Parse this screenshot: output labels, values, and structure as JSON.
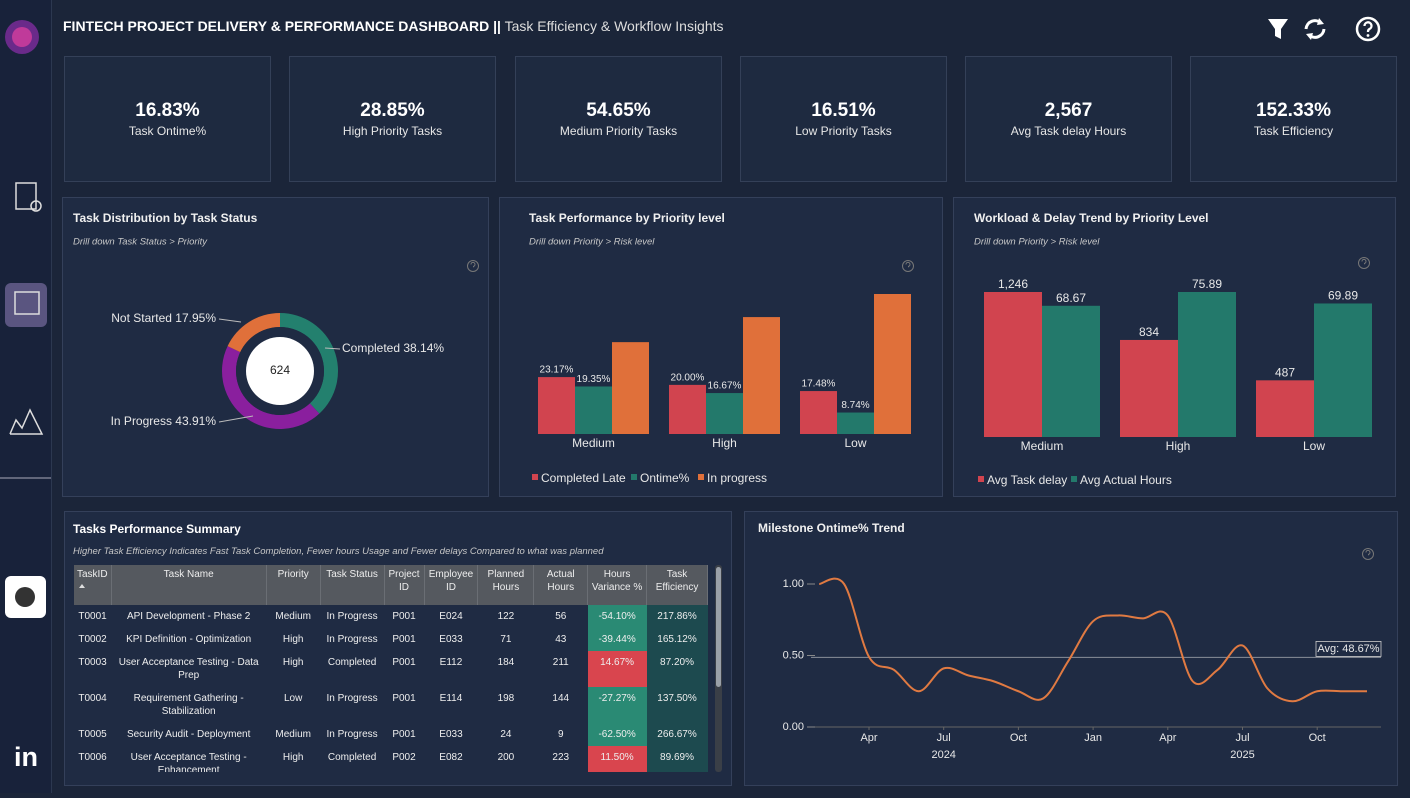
{
  "header": {
    "title": "FINTECH PROJECT DELIVERY & PERFORMANCE DASHBOARD ||",
    "subtitle": "Task Efficiency & Workflow Insights"
  },
  "brand": "in",
  "kpis": [
    {
      "value": "16.83%",
      "label": "Task Ontime%"
    },
    {
      "value": "28.85%",
      "label": "High Priority Tasks"
    },
    {
      "value": "54.65%",
      "label": "Medium Priority Tasks"
    },
    {
      "value": "16.51%",
      "label": "Low Priority Tasks"
    },
    {
      "value": "2,567",
      "label": "Avg Task delay Hours"
    },
    {
      "value": "152.33%",
      "label": "Task Efficiency"
    }
  ],
  "chart_data": [
    {
      "type": "pie",
      "title": "Task Distribution by Task Status",
      "subtitle": "Drill down Task Status > Priority",
      "categories": [
        "Completed",
        "In Progress",
        "Not Started"
      ],
      "values": [
        38.14,
        43.91,
        17.95
      ],
      "value_labels": [
        "38.14%",
        "43.91%",
        "17.95%"
      ],
      "colors": [
        "#23806e",
        "#8a1f9e",
        "#e0703a"
      ],
      "total": 624
    },
    {
      "type": "bar",
      "title": "Task Performance by Priority level",
      "subtitle": "Drill down Priority > Risk level",
      "categories": [
        "Medium",
        "High",
        "Low"
      ],
      "series": [
        {
          "name": "Completed Late",
          "color": "#d1444f",
          "values": [
            23.17,
            20.0,
            17.48
          ],
          "value_labels": [
            "23.17%",
            "20.00%",
            "17.48%"
          ]
        },
        {
          "name": "Ontime%",
          "color": "#23796b",
          "values": [
            19.35,
            16.67,
            8.74
          ],
          "value_labels": [
            "19.35%",
            "16.67%",
            "8.74%"
          ]
        },
        {
          "name": "In progress",
          "color": "#e0703a",
          "values": [
            37.4,
            47.6,
            57.0
          ]
        }
      ]
    },
    {
      "type": "bar",
      "title": "Workload & Delay Trend by Priority Level",
      "subtitle": "Drill down Priority > Risk level",
      "categories": [
        "Medium",
        "High",
        "Low"
      ],
      "series": [
        {
          "name": "Avg Task delay",
          "color": "#d1444f",
          "values": [
            1246,
            834,
            487
          ],
          "value_labels": [
            "1,246",
            "834",
            "487"
          ]
        },
        {
          "name": "Avg Actual Hours",
          "color": "#23796b",
          "axis": "y2",
          "values": [
            68.67,
            75.89,
            69.89
          ],
          "data_labels": true
        }
      ]
    },
    {
      "type": "line",
      "title": "Milestone Ontime% Trend",
      "x": [
        "2024-02",
        "2024-03",
        "2024-04",
        "2024-05",
        "2024-06",
        "2024-07",
        "2024-08",
        "2024-09",
        "2024-10",
        "2024-11",
        "2024-12",
        "2025-01",
        "2025-02",
        "2025-03",
        "2025-04",
        "2025-05",
        "2025-06",
        "2025-07",
        "2025-08",
        "2025-09",
        "2025-10",
        "2025-11",
        "2025-12"
      ],
      "series": [
        {
          "name": "Milestone Ontime%",
          "color": "#e07a42",
          "values": [
            1.0,
            1.0,
            0.49,
            0.4,
            0.25,
            0.41,
            0.36,
            0.32,
            0.25,
            0.2,
            0.46,
            0.74,
            0.78,
            0.76,
            0.78,
            0.32,
            0.4,
            0.57,
            0.27,
            0.18,
            0.25,
            0.25,
            0.25
          ]
        }
      ],
      "ylim": [
        0,
        1
      ],
      "yticks": [
        {
          "value": 0,
          "label": "0.00"
        },
        {
          "value": 0.5,
          "label": "0.50"
        },
        {
          "value": 1,
          "label": "1.00"
        }
      ],
      "xticks": [
        {
          "value": "2024-04",
          "label": "Apr"
        },
        {
          "value": "2024-07",
          "label": "Jul"
        },
        {
          "value": "2024-10",
          "label": "Oct"
        },
        {
          "value": "2025-01",
          "label": "Jan"
        },
        {
          "value": "2025-04",
          "label": "Apr"
        },
        {
          "value": "2025-07",
          "label": "Jul"
        },
        {
          "value": "2025-10",
          "label": "Oct"
        }
      ],
      "year_labels": [
        {
          "value": "2024-07",
          "label": "2024"
        },
        {
          "value": "2025-07",
          "label": "2025"
        }
      ],
      "avg_line": {
        "value": 0.4867,
        "label": "Avg: 48.67%"
      }
    }
  ],
  "table": {
    "title": "Tasks Performance Summary",
    "subtitle": "Higher Task Efficiency Indicates Fast Task Completion, Fewer hours Usage and Fewer delays Compared to what was planned",
    "columns": [
      "TaskID",
      "Task Name",
      "Priority",
      "Task Status",
      "Project ID",
      "Employee ID",
      "Planned Hours",
      "Actual Hours",
      "Hours Variance %",
      "Task Efficiency"
    ],
    "rows": [
      [
        "T0001",
        "API Development - Phase 2",
        "Medium",
        "In Progress",
        "P001",
        "E024",
        "122",
        "56",
        "-54.10%",
        "217.86%"
      ],
      [
        "T0002",
        "KPI Definition - Optimization",
        "High",
        "In Progress",
        "P001",
        "E033",
        "71",
        "43",
        "-39.44%",
        "165.12%"
      ],
      [
        "T0003",
        "User Acceptance Testing - Data Prep",
        "High",
        "Completed",
        "P001",
        "E112",
        "184",
        "211",
        "14.67%",
        "87.20%"
      ],
      [
        "T0004",
        "Requirement Gathering - Stabilization",
        "Low",
        "In Progress",
        "P001",
        "E114",
        "198",
        "144",
        "-27.27%",
        "137.50%"
      ],
      [
        "T0005",
        "Security Audit - Deployment",
        "Medium",
        "In Progress",
        "P001",
        "E033",
        "24",
        "9",
        "-62.50%",
        "266.67%"
      ],
      [
        "T0006",
        "User Acceptance Testing - Enhancement",
        "High",
        "Completed",
        "P002",
        "E082",
        "200",
        "223",
        "11.50%",
        "89.69%"
      ]
    ]
  }
}
